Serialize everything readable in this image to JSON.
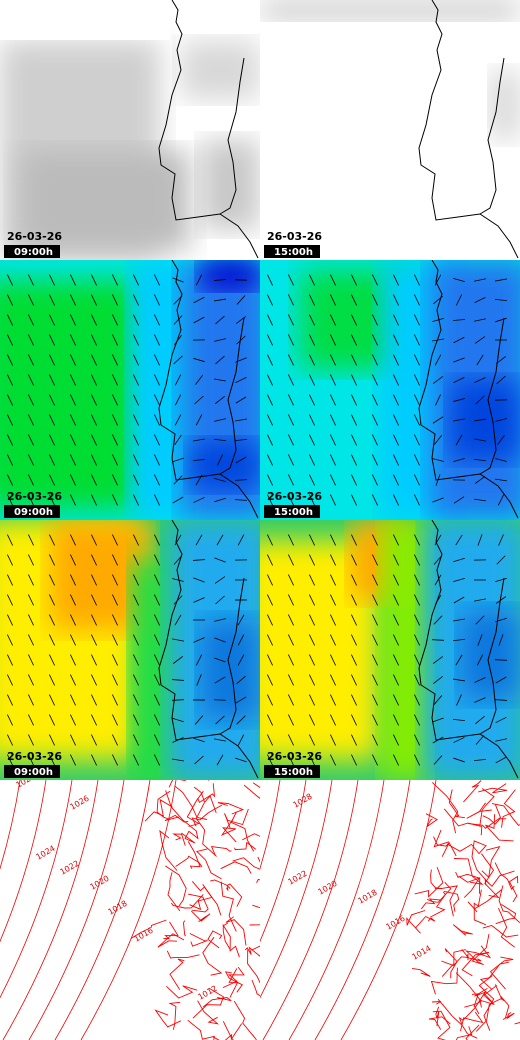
{
  "panels": [
    {
      "date": "26-03-26",
      "time": "09:00h"
    },
    {
      "date": "26-03-26",
      "time": "15:00h"
    },
    {
      "date": "26-03-26",
      "time": "09:00h"
    },
    {
      "date": "26-03-26",
      "time": "15:00h"
    },
    {
      "date": "26-03-26",
      "time": "09:00h"
    },
    {
      "date": "26-03-26",
      "time": "15:00h"
    },
    {
      "isobar_labels": [
        "1028",
        "1026",
        "1024",
        "1022",
        "1020",
        "1018",
        "1016",
        "1012"
      ]
    },
    {
      "isobar_labels": [
        "1028",
        "1022",
        "1020",
        "1018",
        "1016",
        "1014"
      ]
    }
  ]
}
